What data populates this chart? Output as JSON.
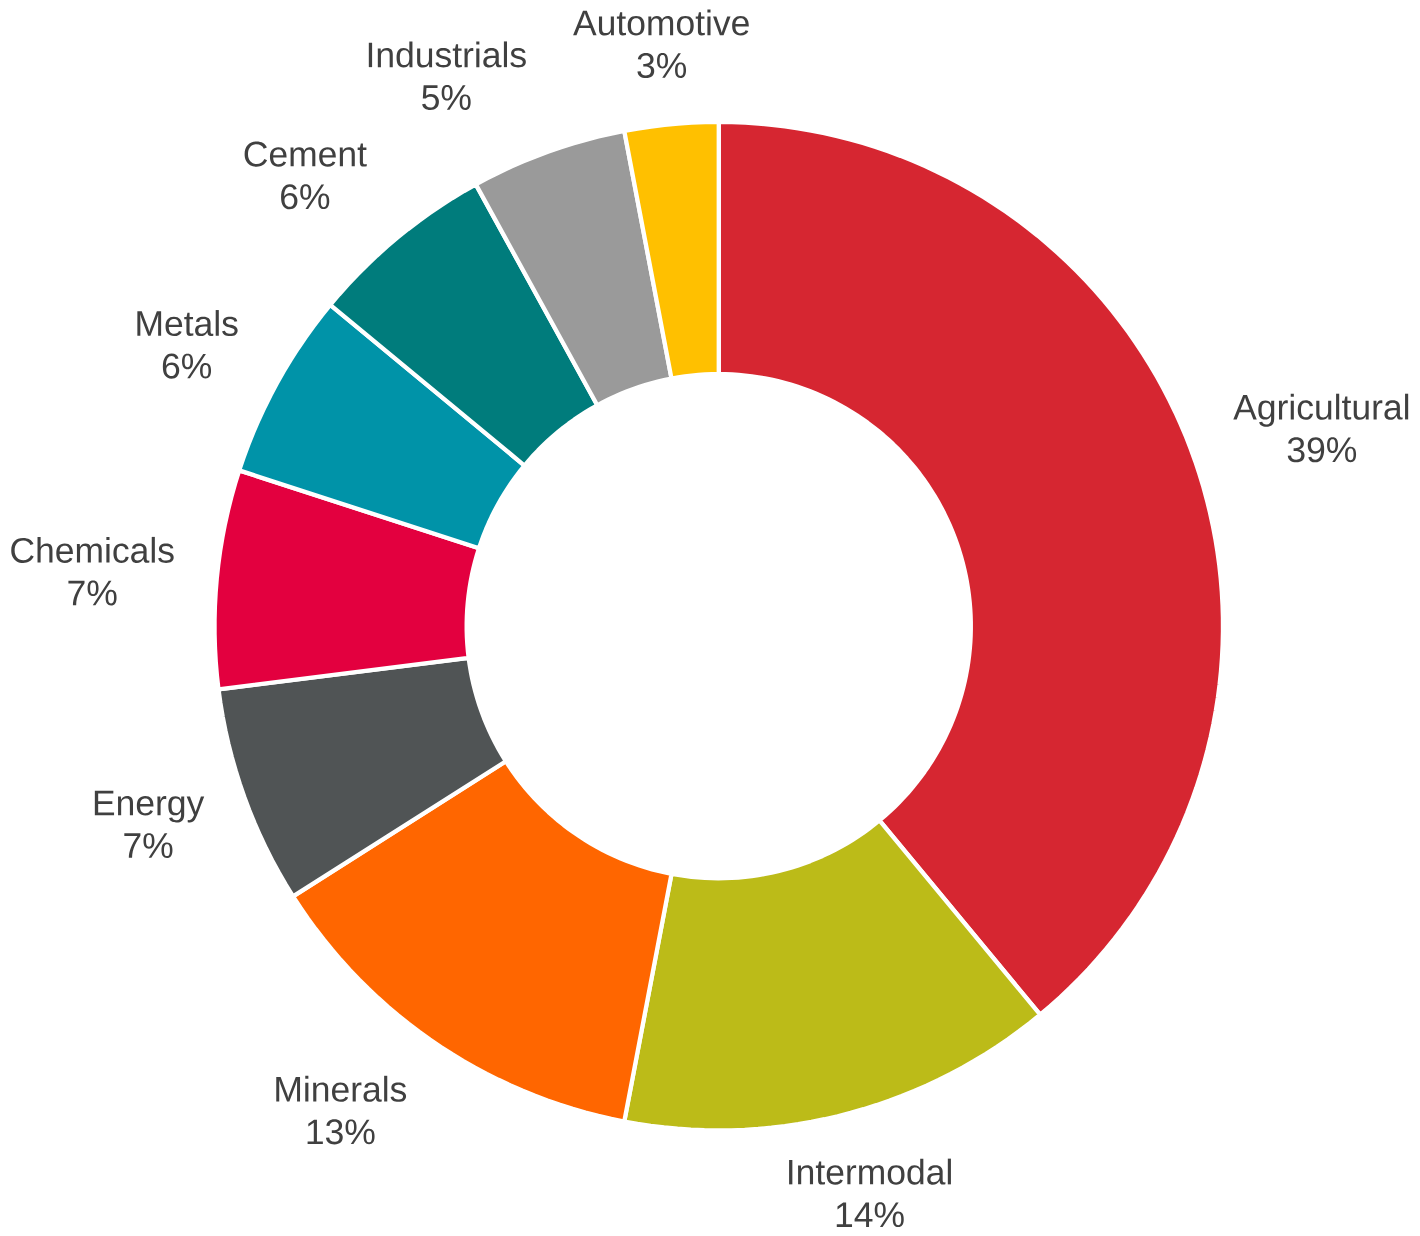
{
  "chart_data": {
    "type": "donut",
    "categories": [
      "Agricultural",
      "Intermodal",
      "Minerals",
      "Energy",
      "Chemicals",
      "Metals",
      "Cement",
      "Industrials",
      "Automotive"
    ],
    "values": [
      39,
      14,
      13,
      7,
      7,
      6,
      6,
      5,
      3
    ],
    "value_labels": [
      "39%",
      "14%",
      "13%",
      "7%",
      "7%",
      "6%",
      "6%",
      "5%",
      "3%"
    ],
    "colors": [
      "#d62631",
      "#bcbb18",
      "#ff6600",
      "#505455",
      "#e3003f",
      "#0093a8",
      "#007c7c",
      "#9a9a9a",
      "#ffc000"
    ]
  }
}
